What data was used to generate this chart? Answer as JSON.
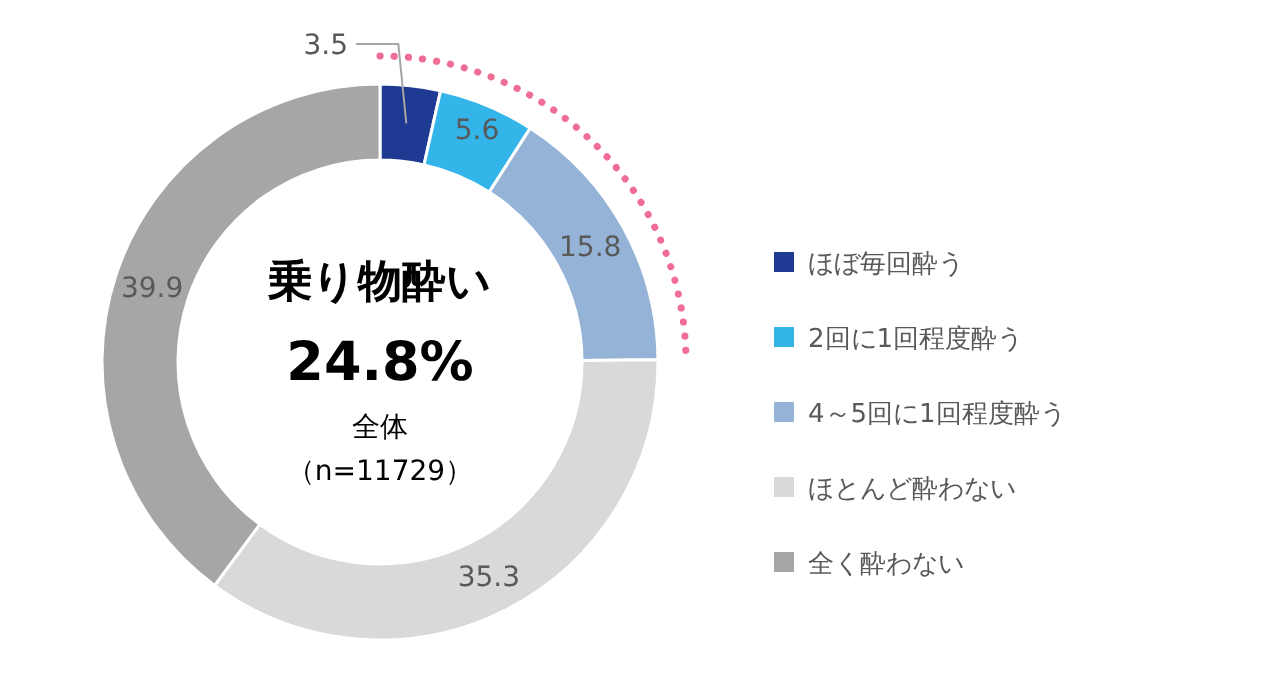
{
  "chart_data": {
    "type": "donut",
    "title": "乗り物酔い",
    "annotations": [
      "24.8%",
      "全体",
      "（n=11729）"
    ],
    "categories": [
      "ほぼ毎回酔う",
      "2回に1回程度酔う",
      "4～5回に1回程度酔う",
      "ほとんど酔わない",
      "全く酔わない"
    ],
    "values": [
      3.5,
      5.6,
      15.8,
      35.3,
      39.9
    ],
    "colors": [
      "#1f3a93",
      "#33b5ea",
      "#95b3d7",
      "#d9d9d9",
      "#a6a6a6"
    ],
    "data_labels": true,
    "legend": "right"
  }
}
